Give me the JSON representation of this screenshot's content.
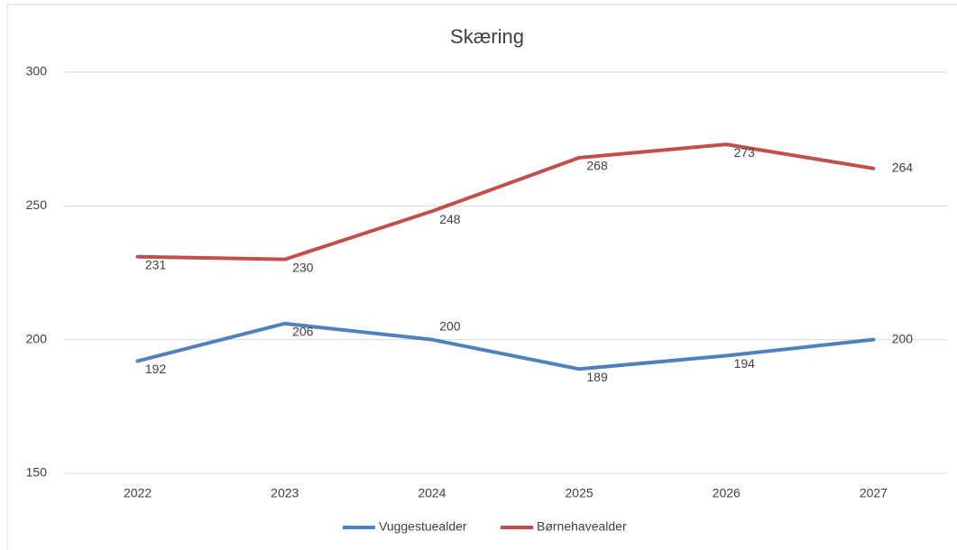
{
  "chart_data": {
    "type": "line",
    "title": "Skæring",
    "categories": [
      "2022",
      "2023",
      "2024",
      "2025",
      "2026",
      "2027"
    ],
    "series": [
      {
        "name": "Vuggestuealder",
        "color": "#4f81bd",
        "values": [
          192,
          206,
          200,
          189,
          194,
          200
        ]
      },
      {
        "name": "Børnehavealder",
        "color": "#c0504d",
        "values": [
          231,
          230,
          248,
          268,
          273,
          264
        ]
      }
    ],
    "ylim": [
      150,
      300
    ],
    "yticks": [
      150,
      200,
      250,
      300
    ],
    "grid": true,
    "legend": "bottom"
  }
}
